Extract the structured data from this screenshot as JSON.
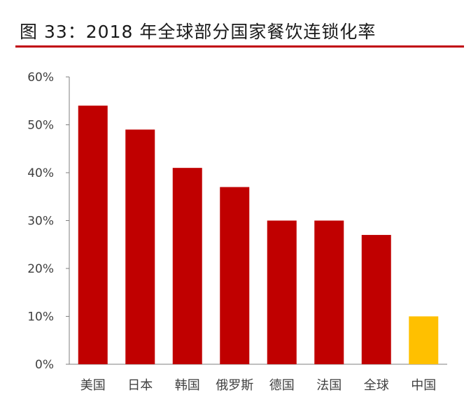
{
  "figure": {
    "title": "图 33：2018 年全球部分国家餐饮连锁化率"
  },
  "colors": {
    "title_rule": "#c0000b",
    "bar_default": "#c00000",
    "bar_highlight": "#ffc000",
    "axis": "#7f7f7f",
    "text": "#404040"
  },
  "chart_data": {
    "type": "bar",
    "title": "图 33：2018 年全球部分国家餐饮连锁化率",
    "xlabel": "",
    "ylabel": "",
    "categories": [
      "美国",
      "日本",
      "韩国",
      "俄罗斯",
      "德国",
      "法国",
      "全球",
      "中国"
    ],
    "values": [
      0.54,
      0.49,
      0.41,
      0.37,
      0.3,
      0.3,
      0.27,
      0.1
    ],
    "ylim": [
      0,
      0.6
    ],
    "yticks": [
      0,
      0.1,
      0.2,
      0.3,
      0.4,
      0.5,
      0.6
    ],
    "ytick_labels": [
      "0%",
      "10%",
      "20%",
      "30%",
      "40%",
      "50%",
      "60%"
    ],
    "highlight_category": "中国",
    "grid": false,
    "legend": "none"
  }
}
